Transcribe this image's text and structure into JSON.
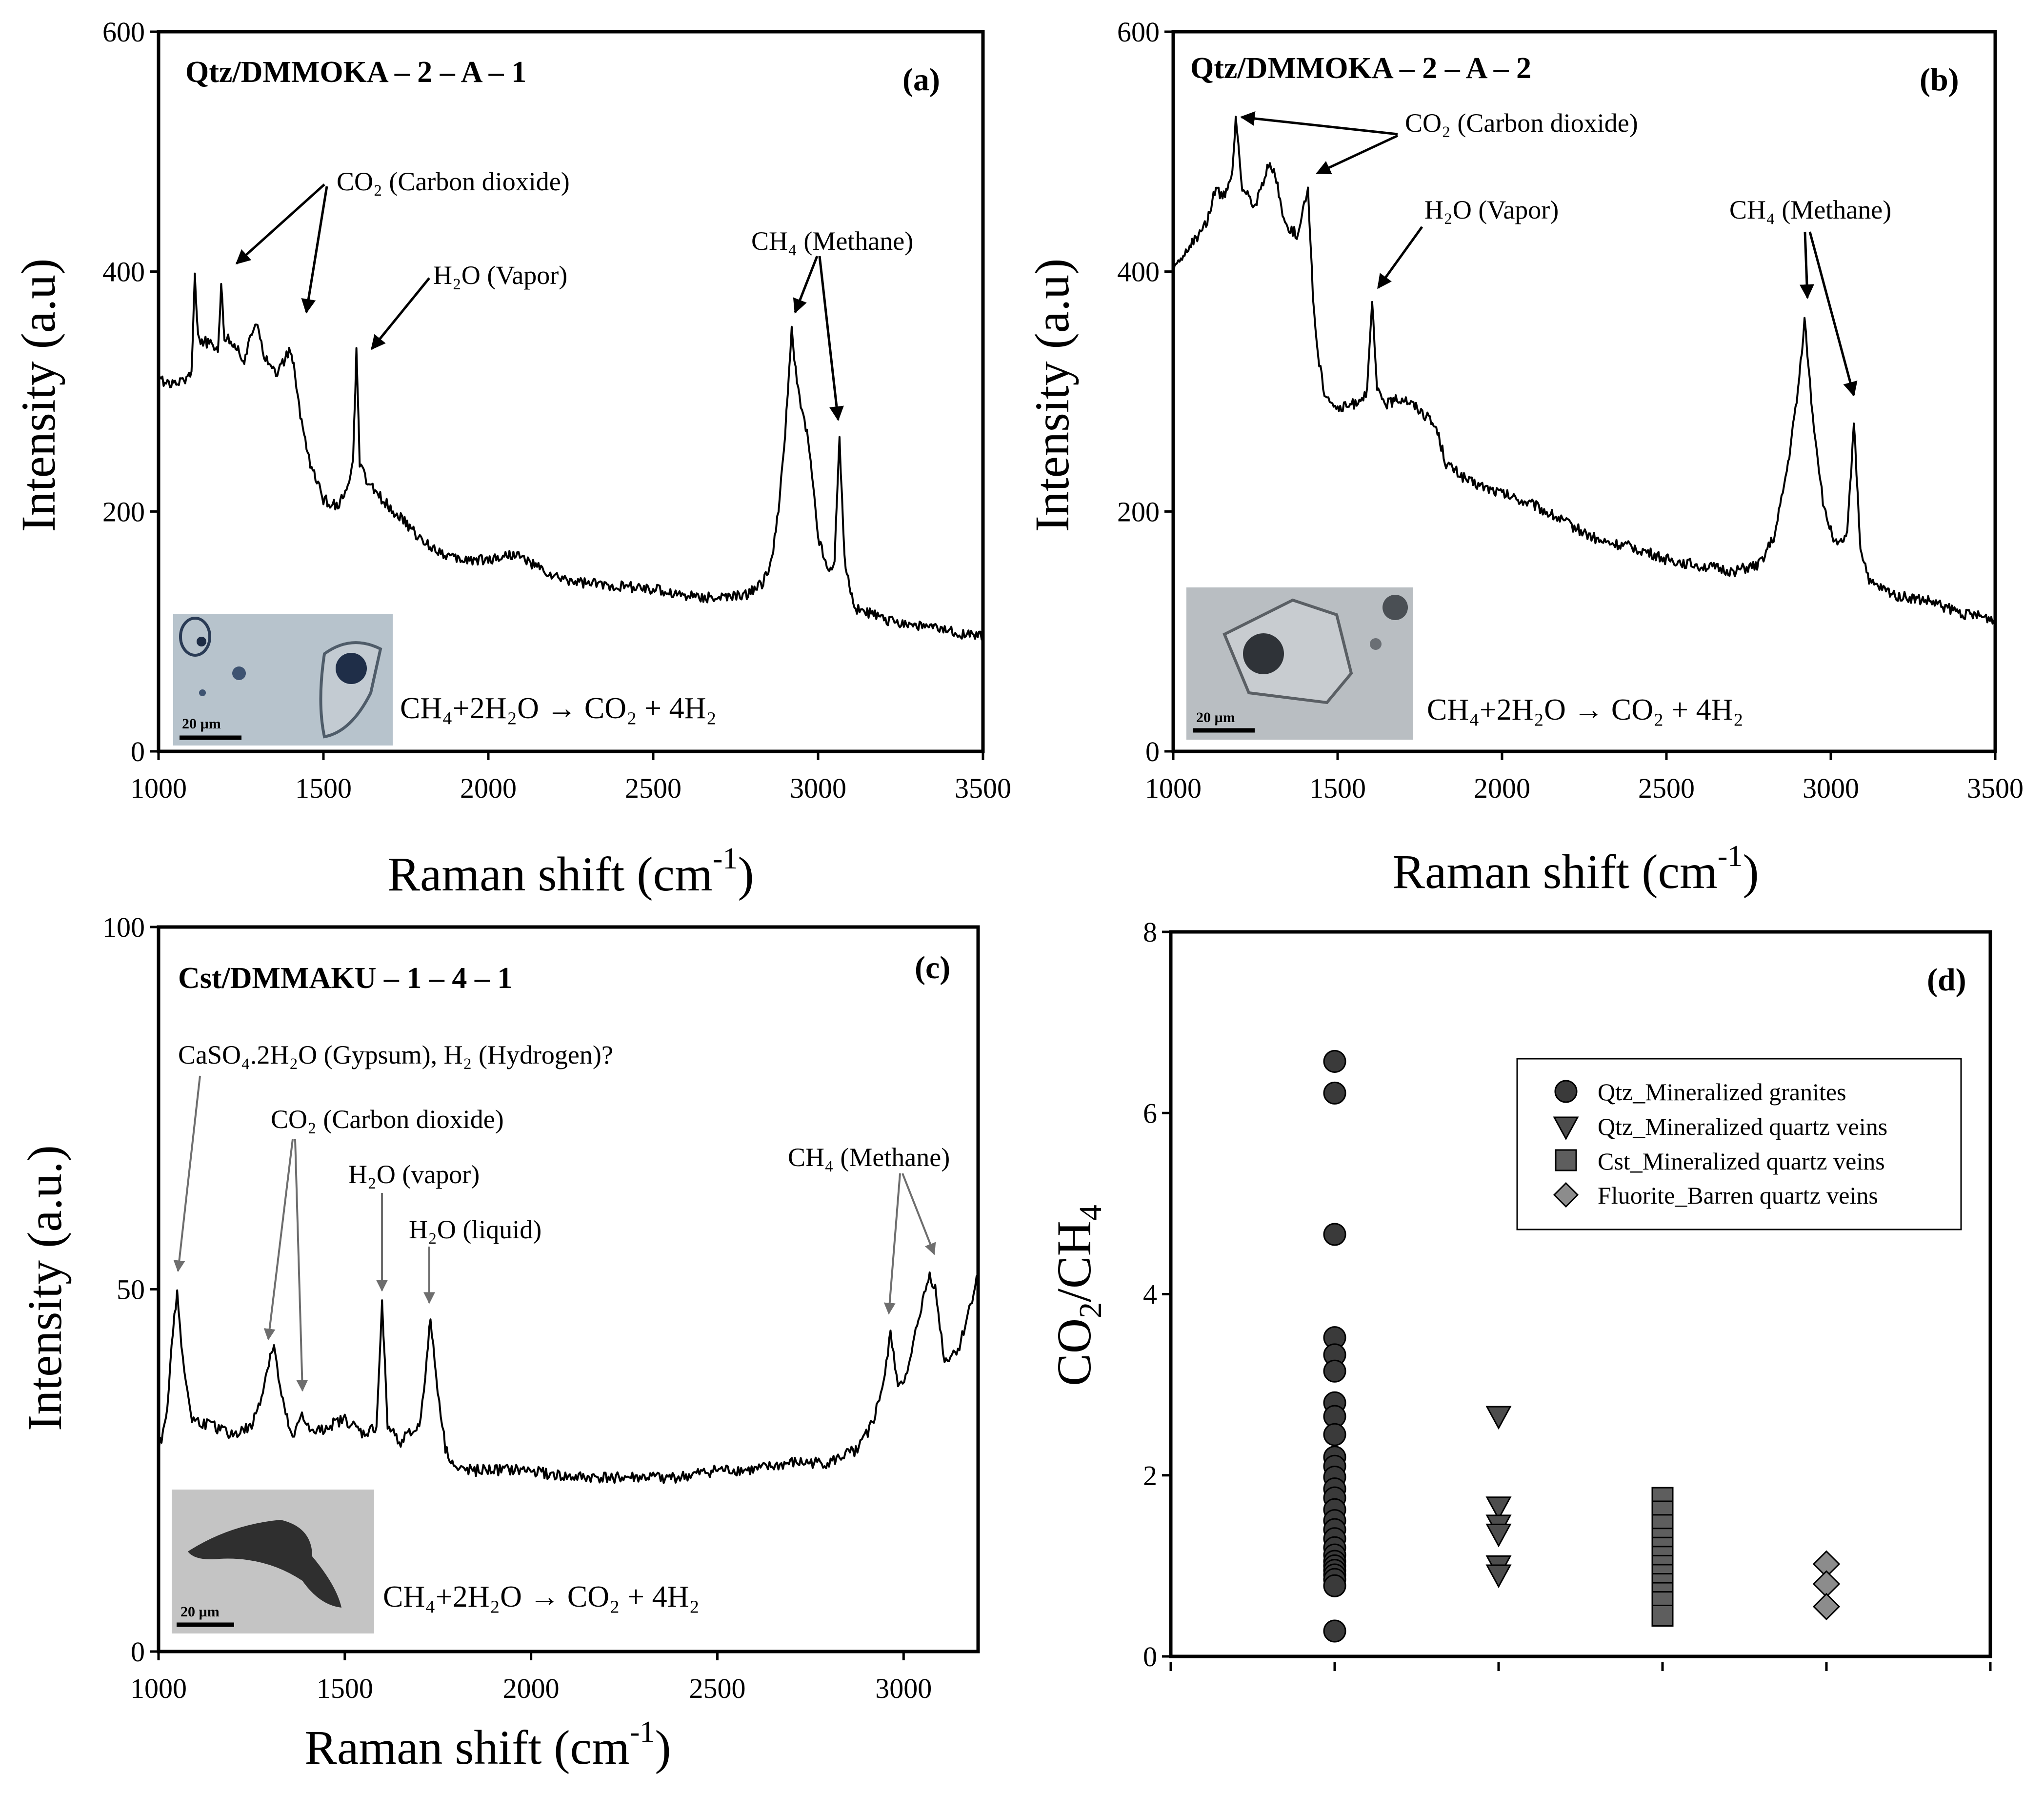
{
  "colors": {
    "axis": "#000000",
    "spectrum": "#000000",
    "marker_d": "#3a3a3a",
    "marker_triangle": "#4d4d4d",
    "marker_square": "#5e5e5e",
    "marker_diamond": "#8c8c8c",
    "grey_arrow": "#6e6e6e"
  },
  "panels": {
    "a": {
      "letter": "(a)",
      "title": "Qtz/DMMOKA – 2 – A – 1",
      "ylabel": "Intensity (a.u)",
      "xlabel_main": "Raman shift (cm",
      "xlabel_sup": "-1",
      "xlabel_end": ")",
      "xticks": [
        "1000",
        "1500",
        "2000",
        "2500",
        "3000",
        "3500"
      ],
      "yticks": [
        "0",
        "200",
        "400",
        "600"
      ],
      "annotations": {
        "co2": "CO₂ (Carbon dioxide)",
        "h2o": "H₂O (Vapor)",
        "ch4": "CH₄ (Methane)"
      },
      "equation": "CH₄+2H₂O → CO₂ + 4H₂",
      "scalebar": "20 µm"
    },
    "b": {
      "letter": "(b)",
      "title": "Qtz/DMMOKA – 2 – A – 2",
      "ylabel": "Intensity (a.u)",
      "xlabel_main": "Raman shift (cm",
      "xlabel_sup": "-1",
      "xlabel_end": ")",
      "xticks": [
        "1000",
        "1500",
        "2000",
        "2500",
        "3000",
        "3500"
      ],
      "yticks": [
        "0",
        "200",
        "400",
        "600"
      ],
      "annotations": {
        "co2": "CO₂ (Carbon dioxide)",
        "h2o": "H₂O (Vapor)",
        "ch4": "CH₄ (Methane)"
      },
      "equation": "CH₄+2H₂O → CO₂ + 4H₂",
      "scalebar": "20 µm"
    },
    "c": {
      "letter": "(c)",
      "title": "Cst/DMMAKU – 1 – 4 – 1",
      "ylabel": "Intensity (a.u.)",
      "xlabel_main": "Raman shift (cm",
      "xlabel_sup": "-1",
      "xlabel_end": ")",
      "xticks": [
        "1000",
        "1500",
        "2000",
        "2500",
        "3000"
      ],
      "yticks": [
        "0",
        "50",
        "100"
      ],
      "annotations": {
        "gypsum": "CaSO₄.2H₂O (Gypsum), H₂ (Hydrogen)?",
        "co2": "CO₂ (Carbon dioxide)",
        "h2o_vapor": "H₂O (vapor)",
        "h2o_liquid": "H₂O (liquid)",
        "ch4": "CH₄ (Methane)"
      },
      "equation": "CH₄+2H₂O → CO₂ + 4H₂",
      "scalebar": "20 µm"
    },
    "d": {
      "letter": "(d)",
      "ylabel_main": "CO",
      "ylabel_sub1": "2",
      "ylabel_mid": "/CH",
      "ylabel_sub2": "4",
      "yticks": [
        "0",
        "2",
        "4",
        "6",
        "8"
      ],
      "legend": [
        "Qtz_Mineralized granites",
        "Qtz_Mineralized quartz veins",
        "Cst_Mineralized quartz veins",
        "Fluorite_Barren quartz veins"
      ]
    }
  },
  "chart_data": [
    {
      "id": "a",
      "type": "line",
      "title": "Qtz/DMMOKA – 2 – A – 1",
      "xlabel": "Raman shift (cm-1)",
      "ylabel": "Intensity (a.u)",
      "xlim": [
        1000,
        3500
      ],
      "ylim": [
        0,
        600
      ],
      "series": [
        {
          "name": "spectrum",
          "x": [
            1000,
            1050,
            1100,
            1110,
            1120,
            1150,
            1180,
            1190,
            1200,
            1230,
            1260,
            1290,
            1300,
            1320,
            1360,
            1400,
            1410,
            1430,
            1460,
            1500,
            1540,
            1570,
            1590,
            1600,
            1610,
            1630,
            1680,
            1750,
            1800,
            1900,
            2000,
            2080,
            2200,
            2300,
            2400,
            2500,
            2600,
            2700,
            2780,
            2830,
            2860,
            2880,
            2900,
            2920,
            2940,
            2970,
            3000,
            3030,
            3050,
            3065,
            3080,
            3110,
            3200,
            3300,
            3400,
            3500
          ],
          "y": [
            310,
            305,
            315,
            400,
            345,
            340,
            335,
            390,
            345,
            340,
            325,
            355,
            360,
            330,
            315,
            335,
            320,
            280,
            240,
            210,
            205,
            215,
            240,
            335,
            240,
            225,
            210,
            190,
            175,
            160,
            160,
            165,
            145,
            140,
            138,
            135,
            130,
            128,
            130,
            140,
            160,
            200,
            265,
            350,
            300,
            260,
            180,
            150,
            160,
            262,
            160,
            120,
            110,
            105,
            100,
            95
          ]
        }
      ]
    },
    {
      "id": "b",
      "type": "line",
      "title": "Qtz/DMMOKA – 2 – A – 2",
      "xlabel": "Raman shift (cm-1)",
      "ylabel": "Intensity (a.u)",
      "xlim": [
        1000,
        3500
      ],
      "ylim": [
        0,
        600
      ],
      "series": [
        {
          "name": "spectrum",
          "x": [
            1000,
            1050,
            1100,
            1130,
            1150,
            1180,
            1190,
            1210,
            1250,
            1290,
            1310,
            1340,
            1380,
            1410,
            1425,
            1440,
            1460,
            1500,
            1550,
            1590,
            1605,
            1620,
            1650,
            1700,
            1750,
            1800,
            1830,
            1900,
            2000,
            2100,
            2200,
            2300,
            2400,
            2500,
            2600,
            2700,
            2780,
            2830,
            2870,
            2900,
            2920,
            2945,
            2980,
            3020,
            3050,
            3070,
            3090,
            3120,
            3200,
            3300,
            3400,
            3500
          ],
          "y": [
            400,
            420,
            440,
            470,
            460,
            480,
            530,
            470,
            455,
            490,
            480,
            440,
            430,
            470,
            380,
            330,
            300,
            285,
            290,
            300,
            375,
            300,
            290,
            295,
            285,
            270,
            240,
            225,
            215,
            205,
            190,
            175,
            170,
            160,
            155,
            150,
            155,
            180,
            240,
            300,
            360,
            280,
            200,
            170,
            180,
            275,
            170,
            140,
            130,
            125,
            115,
            110
          ]
        }
      ]
    },
    {
      "id": "c",
      "type": "line",
      "title": "Cst/DMMAKU – 1 – 4 – 1",
      "xlabel": "Raman shift (cm-1)",
      "ylabel": "Intensity (a.u.)",
      "xlim": [
        1000,
        3200
      ],
      "ylim": [
        0,
        100
      ],
      "series": [
        {
          "name": "spectrum",
          "x": [
            1000,
            1020,
            1035,
            1050,
            1065,
            1090,
            1150,
            1200,
            1250,
            1280,
            1300,
            1310,
            1330,
            1360,
            1385,
            1410,
            1450,
            1500,
            1550,
            1585,
            1600,
            1615,
            1650,
            1700,
            1720,
            1730,
            1745,
            1770,
            1800,
            1900,
            2000,
            2100,
            2200,
            2300,
            2400,
            2500,
            2600,
            2700,
            2800,
            2880,
            2920,
            2950,
            2965,
            2985,
            3010,
            3040,
            3070,
            3085,
            3110,
            3150,
            3180,
            3200
          ],
          "y": [
            28,
            32,
            42,
            50,
            40,
            32,
            31,
            30,
            31,
            36,
            41,
            42,
            35,
            29,
            33,
            30,
            31,
            32,
            30,
            31,
            48,
            31,
            29,
            31,
            40,
            46,
            38,
            28,
            25,
            25,
            25,
            24,
            24,
            24,
            24,
            25,
            25,
            26,
            26,
            28,
            32,
            38,
            44,
            37,
            38,
            46,
            52,
            50,
            40,
            42,
            48,
            52
          ]
        }
      ]
    },
    {
      "id": "d",
      "type": "scatter",
      "xlabel": "",
      "ylabel": "CO2/CH4",
      "xlim": [
        0,
        5
      ],
      "ylim": [
        0,
        8
      ],
      "legend_position": "upper-right",
      "series": [
        {
          "name": "Qtz_Mineralized granites",
          "marker": "circle",
          "x": [
            1,
            1,
            1,
            1,
            1,
            1,
            1,
            1,
            1,
            1,
            1,
            1,
            1,
            1,
            1,
            1,
            1,
            1,
            1,
            1,
            1,
            1,
            1,
            1,
            1,
            1,
            1
          ],
          "y": [
            6.57,
            6.22,
            4.66,
            3.52,
            3.33,
            3.15,
            2.8,
            2.65,
            2.45,
            2.2,
            2.1,
            1.98,
            1.85,
            1.75,
            1.62,
            1.5,
            1.4,
            1.3,
            1.2,
            1.12,
            1.05,
            1.0,
            0.95,
            0.9,
            0.85,
            0.78,
            0.28
          ]
        },
        {
          "name": "Qtz_Mineralized quartz veins",
          "marker": "triangle-down",
          "x": [
            2,
            2,
            2,
            2,
            2,
            2
          ],
          "y": [
            2.65,
            1.65,
            1.45,
            1.35,
            1.0,
            0.9
          ]
        },
        {
          "name": "Cst_Mineralized quartz veins",
          "marker": "square",
          "x": [
            3,
            3,
            3,
            3,
            3,
            3,
            3,
            3,
            3,
            3,
            3,
            3
          ],
          "y": [
            1.75,
            1.6,
            1.45,
            1.3,
            1.2,
            1.1,
            1.0,
            0.9,
            0.8,
            0.7,
            0.6,
            0.45
          ]
        },
        {
          "name": "Fluorite_Barren quartz veins",
          "marker": "diamond",
          "x": [
            4,
            4,
            4
          ],
          "y": [
            1.02,
            0.8,
            0.55
          ]
        }
      ]
    }
  ]
}
